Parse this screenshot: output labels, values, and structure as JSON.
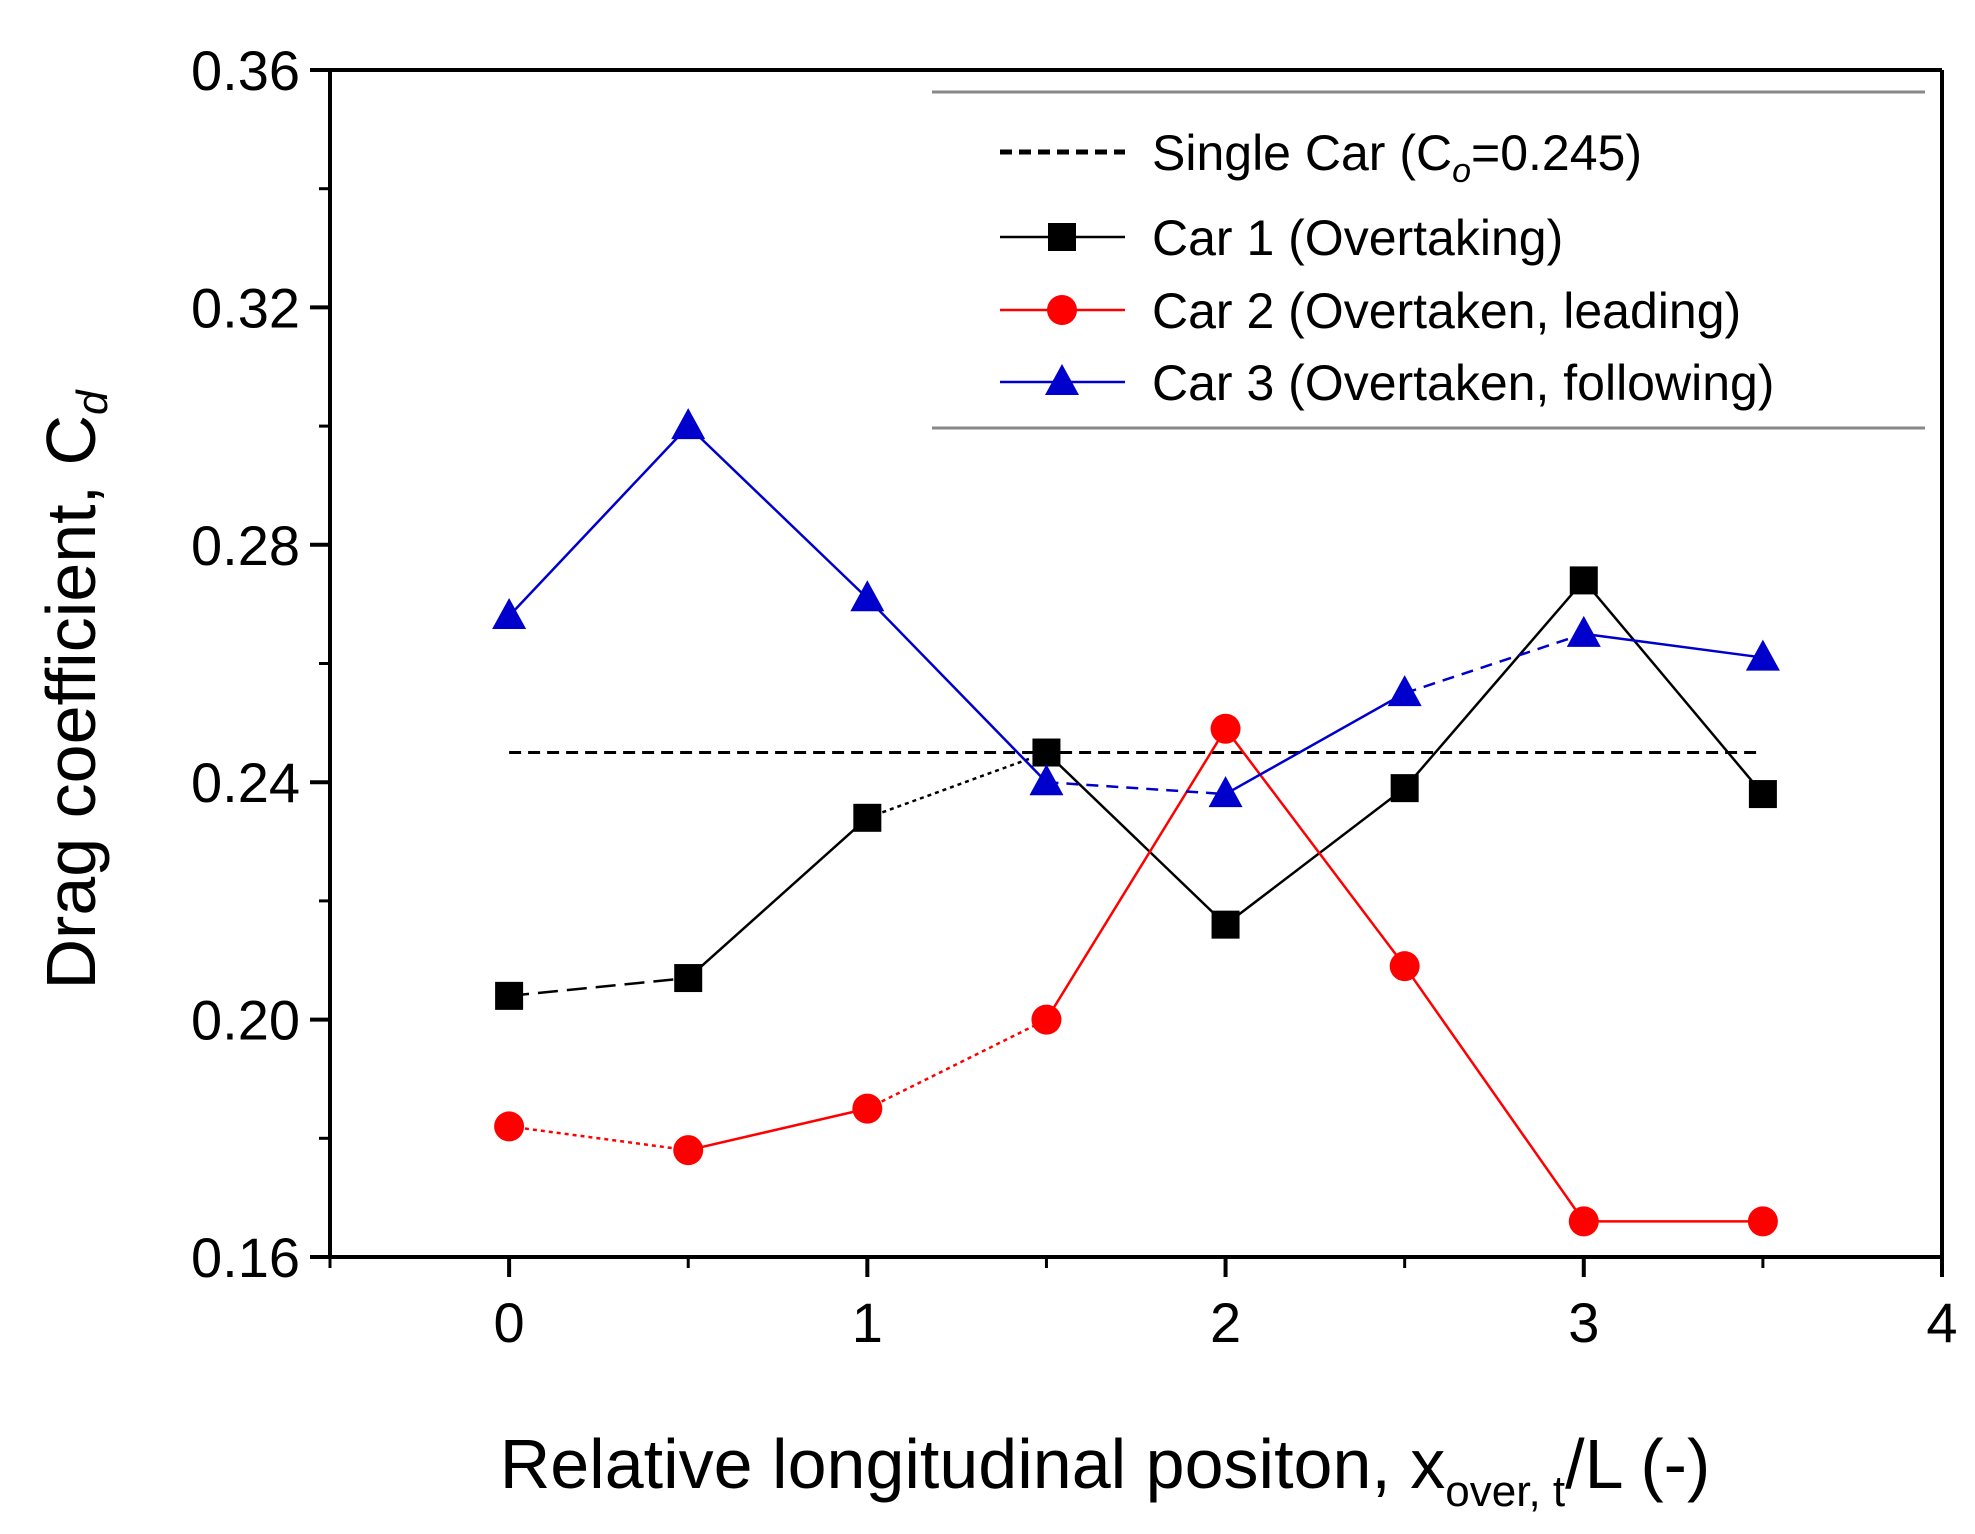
{
  "chart_data": {
    "type": "line",
    "title": "",
    "xlabel": {
      "main": "Relative longitudinal positon, x",
      "sub": "over, t",
      "suffix": "/L (-)"
    },
    "ylabel": {
      "main": "Drag coefficient, C",
      "sub": "d"
    },
    "xlim": [
      -0.5,
      4
    ],
    "ylim": [
      0.16,
      0.36
    ],
    "xticks": [
      0,
      1,
      2,
      3,
      4
    ],
    "xtick_labels": [
      "0",
      "1",
      "2",
      "3",
      "4"
    ],
    "yticks": [
      0.16,
      0.2,
      0.24,
      0.28,
      0.32,
      0.36
    ],
    "ytick_labels": [
      "0.16",
      "0.20",
      "0.24",
      "0.28",
      "0.32",
      "0.36"
    ],
    "grid": false,
    "legend_position": "top-right",
    "reference_line": {
      "name": "Single Car (C",
      "name_sub": "o",
      "name_end": "=0.245)",
      "value": 0.245,
      "x_range": [
        0,
        3.5
      ],
      "color": "#000000"
    },
    "x": [
      0,
      0.5,
      1,
      1.5,
      2,
      2.5,
      3,
      3.5
    ],
    "series": [
      {
        "name": "Car 1 (Overtaking)",
        "color": "#000000",
        "marker": "square",
        "values": [
          0.204,
          0.207,
          0.234,
          0.245,
          0.216,
          0.239,
          0.274,
          0.238
        ]
      },
      {
        "name": "Car 2 (Overtaken, leading)",
        "color": "#ff0000",
        "marker": "circle",
        "values": [
          0.182,
          0.178,
          0.185,
          0.2,
          0.249,
          0.209,
          0.166,
          0.166
        ]
      },
      {
        "name": "Car 3 (Overtaken, following)",
        "color": "#0000cc",
        "marker": "triangle",
        "values": [
          0.268,
          0.3,
          0.271,
          0.24,
          0.238,
          0.255,
          0.265,
          0.261
        ]
      }
    ]
  }
}
